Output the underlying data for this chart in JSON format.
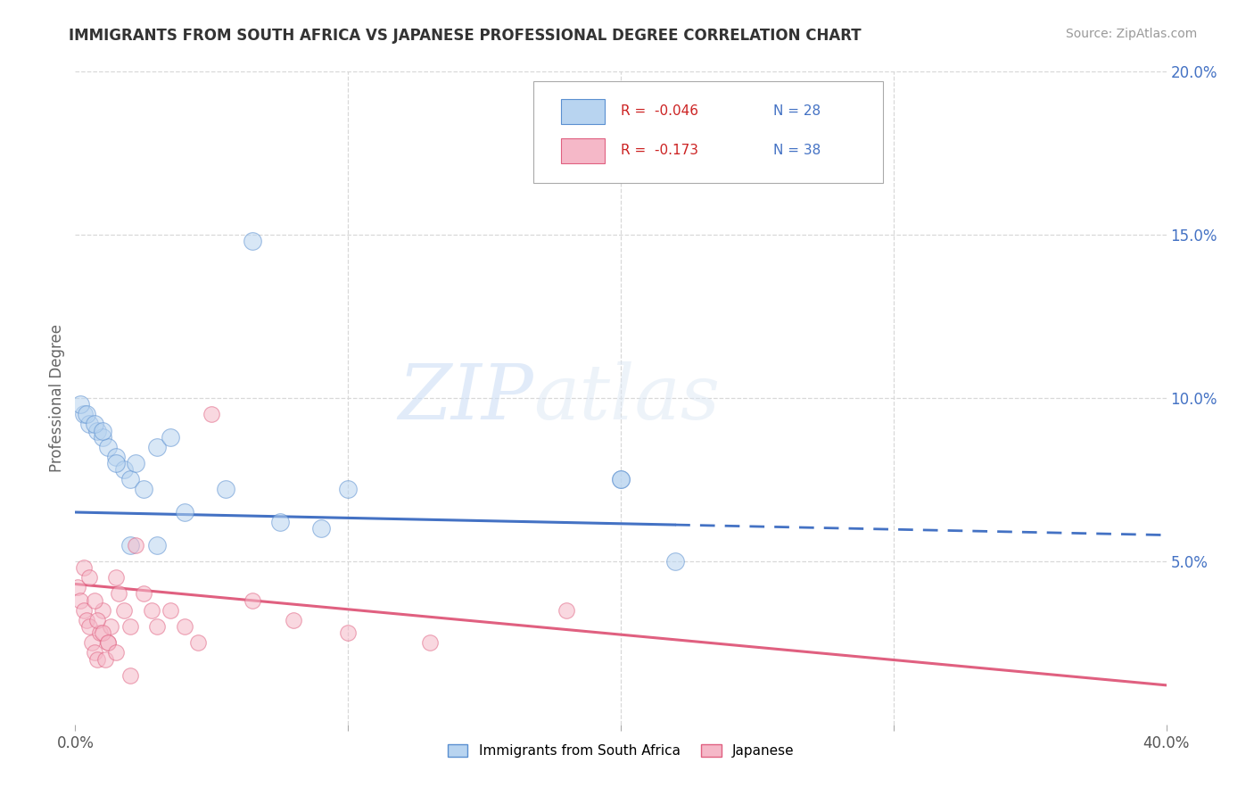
{
  "title": "IMMIGRANTS FROM SOUTH AFRICA VS JAPANESE PROFESSIONAL DEGREE CORRELATION CHART",
  "source": "Source: ZipAtlas.com",
  "ylabel": "Professional Degree",
  "legend_series": [
    {
      "label": "Immigrants from South Africa",
      "R": -0.046,
      "N": 28,
      "color": "#b8d4f0",
      "edge": "#5a8fd0"
    },
    {
      "label": "Japanese",
      "R": -0.173,
      "N": 38,
      "color": "#f5b8c8",
      "edge": "#e06080"
    }
  ],
  "blue_scatter_x": [
    0.3,
    0.5,
    0.8,
    1.0,
    1.2,
    1.5,
    1.8,
    2.0,
    2.2,
    2.5,
    3.0,
    3.5,
    4.0,
    5.5,
    6.5,
    7.5,
    9.0,
    10.0,
    20.0,
    0.2,
    0.4,
    0.7,
    1.0,
    1.5,
    2.0,
    3.0,
    20.0,
    22.0
  ],
  "blue_scatter_y": [
    9.5,
    9.2,
    9.0,
    8.8,
    8.5,
    8.2,
    7.8,
    7.5,
    8.0,
    7.2,
    8.5,
    8.8,
    6.5,
    7.2,
    14.8,
    6.2,
    6.0,
    7.2,
    7.5,
    9.8,
    9.5,
    9.2,
    9.0,
    8.0,
    5.5,
    5.5,
    7.5,
    5.0
  ],
  "pink_scatter_x": [
    0.1,
    0.2,
    0.3,
    0.4,
    0.5,
    0.6,
    0.7,
    0.8,
    0.9,
    1.0,
    1.1,
    1.2,
    1.3,
    1.5,
    1.6,
    1.8,
    2.0,
    2.2,
    2.5,
    2.8,
    3.0,
    3.5,
    4.0,
    4.5,
    5.0,
    6.5,
    8.0,
    10.0,
    13.0,
    18.0,
    0.3,
    0.5,
    0.7,
    0.8,
    1.0,
    1.2,
    1.5,
    2.0
  ],
  "pink_scatter_y": [
    4.2,
    3.8,
    3.5,
    3.2,
    3.0,
    2.5,
    2.2,
    2.0,
    2.8,
    3.5,
    2.0,
    2.5,
    3.0,
    4.5,
    4.0,
    3.5,
    3.0,
    5.5,
    4.0,
    3.5,
    3.0,
    3.5,
    3.0,
    2.5,
    9.5,
    3.8,
    3.2,
    2.8,
    2.5,
    3.5,
    4.8,
    4.5,
    3.8,
    3.2,
    2.8,
    2.5,
    2.2,
    1.5
  ],
  "xlim": [
    0,
    40
  ],
  "ylim": [
    0,
    20
  ],
  "yticks_right": [
    5,
    10,
    15,
    20
  ],
  "blue_trend_y_start": 6.5,
  "blue_trend_y_end": 5.8,
  "pink_trend_y_start": 4.3,
  "pink_trend_y_end": 1.2,
  "solid_end_x": 22,
  "watermark_zip": "ZIP",
  "watermark_atlas": "atlas",
  "background_color": "#ffffff",
  "scatter_size_blue": 200,
  "scatter_size_pink": 160,
  "scatter_alpha": 0.55,
  "title_color": "#333333",
  "source_color": "#999999",
  "axis_label_color": "#666666",
  "right_tick_color": "#4472c4",
  "grid_color": "#d8d8d8",
  "blue_color": "#4472c4",
  "pink_color": "#e06080"
}
